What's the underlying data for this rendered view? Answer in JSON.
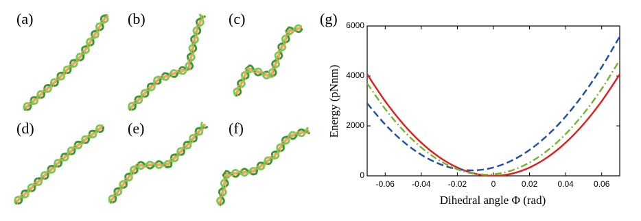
{
  "panel_labels": [
    "(a)",
    "(b)",
    "(c)",
    "(d)",
    "(e)",
    "(f)"
  ],
  "chart_data": {
    "type": "line",
    "panel_label": "(g)",
    "x_label": "Dihedral angle Φ (rad)",
    "y_label": "Energy (pNnm)",
    "x": [
      -0.07,
      -0.06,
      -0.05,
      -0.04,
      -0.03,
      -0.02,
      -0.01,
      0,
      0.01,
      0.02,
      0.03,
      0.04,
      0.05,
      0.06,
      0.07
    ],
    "series": [
      {
        "color": "#e02020",
        "line_style": "solid",
        "values": [
          4067,
          2988,
          2075,
          1328,
          747,
          332,
          83,
          0,
          83,
          332,
          747,
          1328,
          2075,
          2988,
          4067
        ]
      },
      {
        "color": "#2050a8",
        "line_style": "dashed",
        "values": [
          2901,
          2056,
          1371,
          845,
          478,
          271,
          223,
          335,
          606,
          1036,
          1626,
          2375,
          3284,
          4352,
          5579
        ]
      },
      {
        "color": "#78b430",
        "line_style": "dashdot",
        "values": [
          3700,
          2678,
          1823,
          1136,
          616,
          265,
          80,
          63,
          214,
          533,
          1019,
          1672,
          2494,
          3482,
          4639
        ]
      }
    ],
    "xlim": [
      -0.07,
      0.07
    ],
    "xticks": [
      -0.06,
      -0.04,
      -0.02,
      0,
      0.02,
      0.04,
      0.06
    ],
    "ylim": [
      0,
      6000
    ],
    "yticks": [
      0,
      2000,
      4000,
      6000
    ]
  }
}
